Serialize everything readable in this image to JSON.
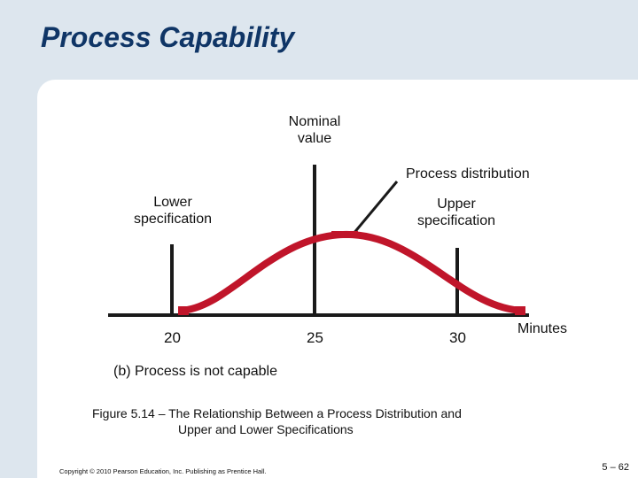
{
  "slide": {
    "title": "Process Capability",
    "nominal_label_line1": "Nominal",
    "nominal_label_line2": "value",
    "process_distribution_label": "Process distribution",
    "lower_spec_line1": "Lower",
    "lower_spec_line2": "specification",
    "upper_spec_line1": "Upper",
    "upper_spec_line2": "specification",
    "axis_ticks": [
      "20",
      "25",
      "30"
    ],
    "axis_unit": "Minutes",
    "subcaption": "(b)  Process is not capable",
    "figure_caption_line1": "Figure 5.14 –  The Relationship Between a Process Distribution and",
    "figure_caption_line2": "Upper and Lower Specifications",
    "copyright": "Copyright © 2010 Pearson Education, Inc. Publishing as Prentice Hall.",
    "page_number": "5 – 62"
  },
  "colors": {
    "title": "#0f3566",
    "background": "#dde6ee",
    "curve": "#c0152a",
    "lines": "#1a1a1a"
  }
}
